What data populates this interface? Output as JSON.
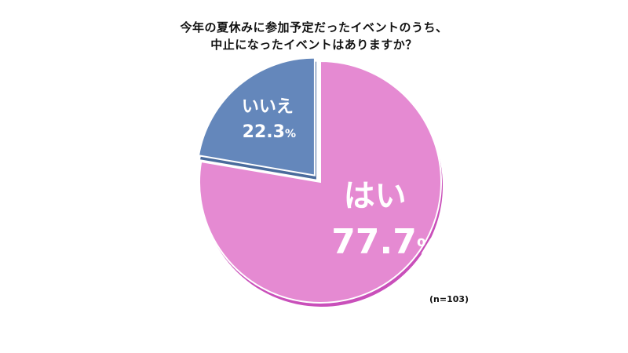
{
  "chart_data": {
    "type": "pie",
    "title_lines": [
      "今年の夏休みに参加予定だったイベントのうち、",
      "中止になったイベントはありますか？"
    ],
    "slices": [
      {
        "label": "はい",
        "value": 77.7,
        "value_text": "77.7",
        "unit": "%",
        "color": "#e58ad2",
        "shadow_color": "#c94fba"
      },
      {
        "label": "いいえ",
        "value": 22.3,
        "value_text": "22.3",
        "unit": "%",
        "color": "#6487bb",
        "shadow_color": "#4a6b9c"
      }
    ],
    "note": "(n=103)",
    "legend": "none",
    "label_color": "#ffffff"
  }
}
